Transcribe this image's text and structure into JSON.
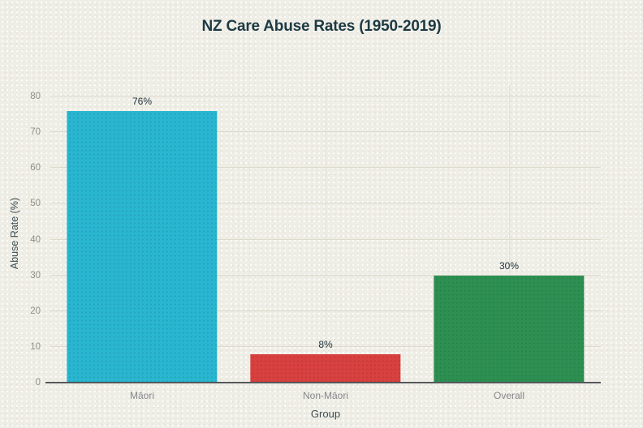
{
  "title": "NZ Care Abuse Rates (1950-2019)",
  "chart_data": {
    "type": "bar",
    "title": "NZ Care Abuse Rates (1950-2019)",
    "categories": [
      "Māori",
      "Non-Māori",
      "Overall"
    ],
    "values": [
      76,
      8,
      30
    ],
    "value_labels": [
      "76%",
      "8%",
      "30%"
    ],
    "xlabel": "Group",
    "ylabel": "Abuse Rate (%)",
    "ylim": [
      0,
      80
    ],
    "yticks": [
      0,
      10,
      20,
      30,
      40,
      50,
      60,
      70,
      80
    ],
    "grid": true,
    "legend": false,
    "bar_colors": [
      "#29b6d0",
      "#d8413f",
      "#2d9052"
    ]
  },
  "colors": {
    "background": "#efeee6",
    "title_text": "#1d3a44",
    "bar_maori": "#29b6d0",
    "bar_non_maori": "#d8413f",
    "bar_overall": "#2d9052"
  }
}
